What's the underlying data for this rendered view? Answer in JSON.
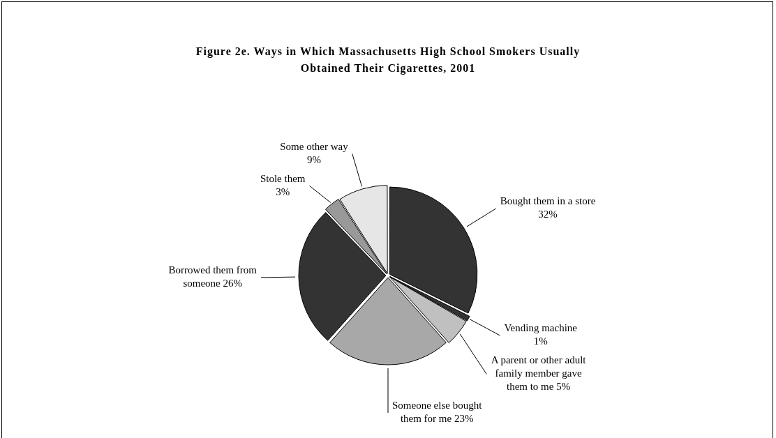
{
  "chart_data": {
    "type": "pie",
    "title": "Figure 2e. Ways in Which Massachusetts High School Smokers Usually Obtained Their Cigarettes, 2001",
    "categories": [
      "Bought them in a store",
      "Vending machine",
      "A parent or other adult family member gave them to me",
      "Someone else bought them for me",
      "Borrowed them from someone",
      "Stole them",
      "Some other way"
    ],
    "values": [
      32,
      1,
      5,
      23,
      26,
      3,
      9
    ],
    "value_labels": [
      "32%",
      "1%",
      "5%",
      "23%",
      "26%",
      "3%",
      "9%"
    ],
    "colors": [
      "#333333",
      "#333333",
      "#c0c0c0",
      "#a8a8a8",
      "#333333",
      "#999999",
      "#e6e6e6"
    ],
    "legend": false
  }
}
